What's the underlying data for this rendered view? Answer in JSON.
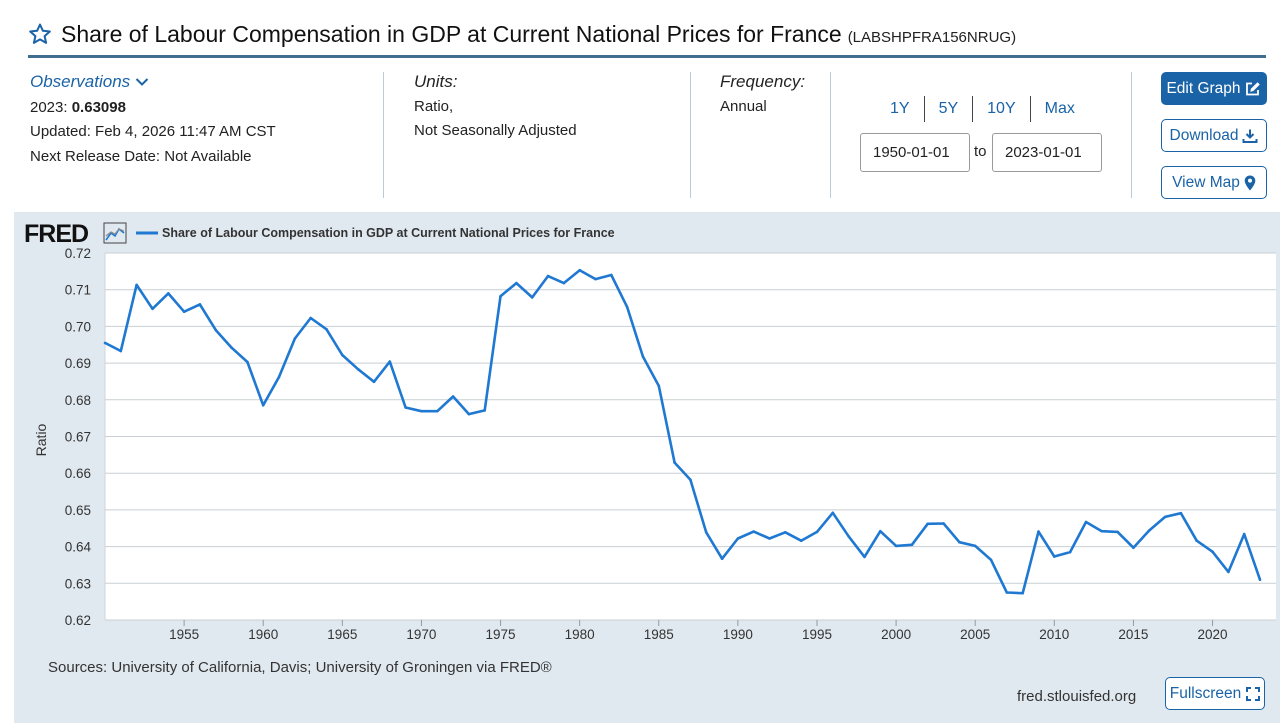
{
  "header": {
    "title": "Share of Labour Compensation in GDP at Current National Prices for France",
    "series_id": "(LABSHPFRA156NRUG)"
  },
  "observations": {
    "label": "Observations",
    "latest_prefix": "2023:",
    "latest_value": "0.63098",
    "updated": "Updated: Feb 4, 2026 11:47 AM CST",
    "next_release": "Next Release Date: Not Available"
  },
  "units": {
    "label": "Units:",
    "line1": "Ratio,",
    "line2": "Not Seasonally Adjusted"
  },
  "frequency": {
    "label": "Frequency:",
    "value": "Annual"
  },
  "date_range": {
    "presets": [
      "1Y",
      "5Y",
      "10Y",
      "Max"
    ],
    "start": "1950-01-01",
    "to_label": "to",
    "end": "2023-01-01"
  },
  "buttons": {
    "edit_graph": "Edit Graph",
    "download": "Download",
    "view_map": "View Map",
    "fullscreen": "Fullscreen"
  },
  "footer": {
    "sources": "Sources: University of California, Davis; University of Groningen via FRED®",
    "site": "fred.stlouisfed.org"
  },
  "colors": {
    "accent": "#1a63a6",
    "line": "#1f78d1",
    "panel": "#e1e9f0"
  },
  "chart_data": {
    "type": "line",
    "logo_text": "FRED",
    "legend": "Share of Labour Compensation in GDP at Current National Prices for France",
    "ylabel": "Ratio",
    "xlabel": "",
    "ylim": [
      0.62,
      0.72
    ],
    "yticks": [
      0.62,
      0.63,
      0.64,
      0.65,
      0.66,
      0.67,
      0.68,
      0.69,
      0.7,
      0.71,
      0.72
    ],
    "ytick_labels": [
      "0.62",
      "0.63",
      "0.64",
      "0.65",
      "0.66",
      "0.67",
      "0.68",
      "0.69",
      "0.70",
      "0.71",
      "0.72"
    ],
    "xticks": [
      1955,
      1960,
      1965,
      1970,
      1975,
      1980,
      1985,
      1990,
      1995,
      2000,
      2005,
      2010,
      2015,
      2020
    ],
    "grid": true,
    "series": [
      {
        "name": "Share of Labour Compensation in GDP at Current National Prices for France",
        "x": [
          1950,
          1951,
          1952,
          1953,
          1954,
          1955,
          1956,
          1957,
          1958,
          1959,
          1960,
          1961,
          1962,
          1963,
          1964,
          1965,
          1966,
          1967,
          1968,
          1969,
          1970,
          1971,
          1972,
          1973,
          1974,
          1975,
          1976,
          1977,
          1978,
          1979,
          1980,
          1981,
          1982,
          1983,
          1984,
          1985,
          1986,
          1987,
          1988,
          1989,
          1990,
          1991,
          1992,
          1993,
          1994,
          1995,
          1996,
          1997,
          1998,
          1999,
          2000,
          2001,
          2002,
          2003,
          2004,
          2005,
          2006,
          2007,
          2008,
          2009,
          2010,
          2011,
          2012,
          2013,
          2014,
          2015,
          2016,
          2017,
          2018,
          2019,
          2020,
          2021,
          2022,
          2023
        ],
        "values": [
          0.6955,
          0.6933,
          0.7113,
          0.7048,
          0.709,
          0.704,
          0.706,
          0.699,
          0.6942,
          0.6903,
          0.6785,
          0.6862,
          0.6967,
          0.7023,
          0.6992,
          0.6922,
          0.6883,
          0.6849,
          0.6904,
          0.6779,
          0.6769,
          0.6769,
          0.6809,
          0.6761,
          0.6771,
          0.7082,
          0.7118,
          0.7079,
          0.7137,
          0.7118,
          0.7153,
          0.7129,
          0.714,
          0.7053,
          0.6918,
          0.6838,
          0.6629,
          0.6582,
          0.6439,
          0.6367,
          0.6422,
          0.6441,
          0.6422,
          0.6439,
          0.6416,
          0.644,
          0.6492,
          0.6428,
          0.6372,
          0.6442,
          0.6402,
          0.6405,
          0.6462,
          0.6463,
          0.6412,
          0.6402,
          0.6364,
          0.6275,
          0.6273,
          0.6441,
          0.6373,
          0.6385,
          0.6467,
          0.6442,
          0.644,
          0.6397,
          0.6444,
          0.6481,
          0.6491,
          0.6416,
          0.6386,
          0.6331,
          0.6434,
          0.63098
        ]
      }
    ]
  }
}
